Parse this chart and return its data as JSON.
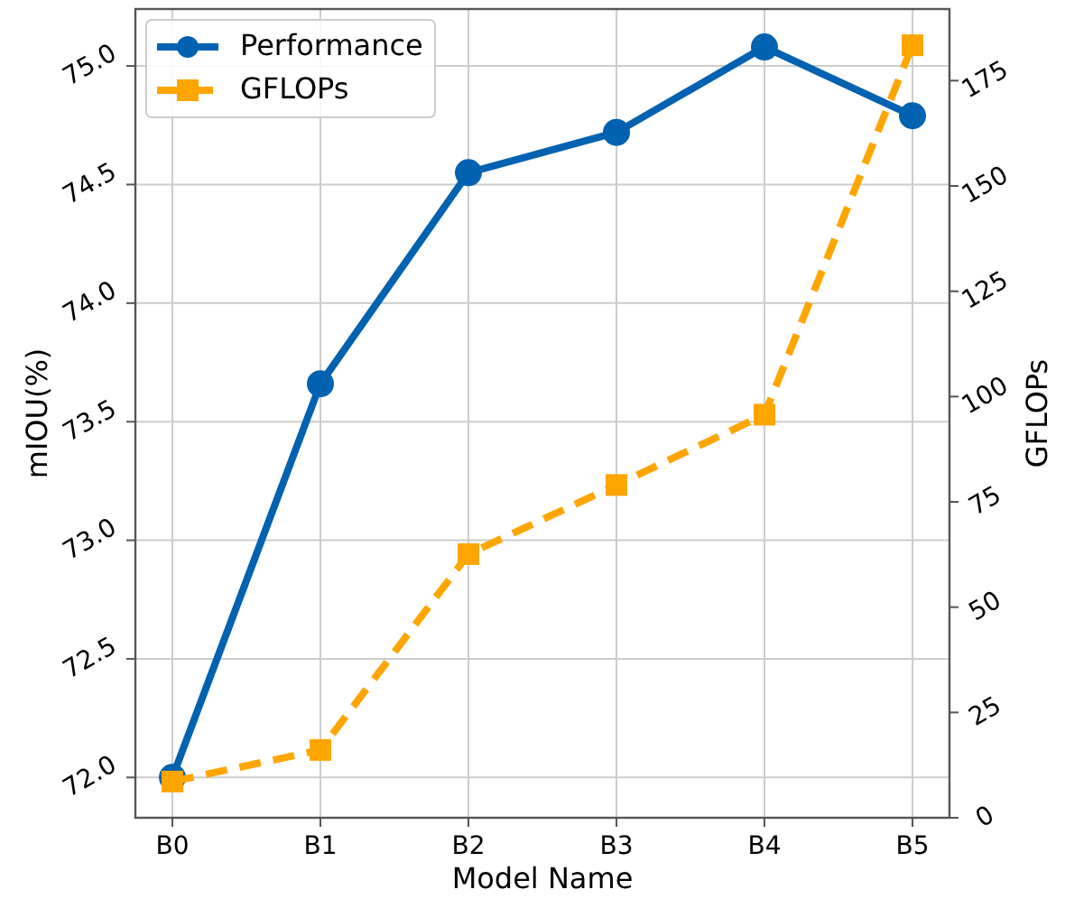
{
  "chart_data": {
    "type": "line",
    "xlabel": "Model Name",
    "ylabel": "mIOU(%)",
    "y2label": "GFLOPs",
    "categories": [
      "B0",
      "B1",
      "B2",
      "B3",
      "B4",
      "B5"
    ],
    "series": [
      {
        "name": "Performance",
        "color": "#0062b0",
        "values": [
          72.0,
          73.66,
          74.55,
          74.72,
          75.08,
          74.79
        ],
        "marker": "circle",
        "line_style": "solid"
      },
      {
        "name": "GFLOPs",
        "color": "#ffa500",
        "values": [
          8.6,
          16.1,
          62.6,
          79,
          95.7,
          183.4
        ],
        "axis": "y2",
        "marker": "square",
        "line_style": "dashed"
      }
    ],
    "ylim": [
      71.83,
      75.24
    ],
    "yticks": [
      {
        "value": 72,
        "label": "72.0"
      },
      {
        "value": 72.5,
        "label": "72.5"
      },
      {
        "value": 73,
        "label": "73.0"
      },
      {
        "value": 73.5,
        "label": "73.5"
      },
      {
        "value": 74,
        "label": "74.0"
      },
      {
        "value": 74.5,
        "label": "74.5"
      },
      {
        "value": 75,
        "label": "75.0"
      }
    ],
    "y2lim": [
      0,
      192
    ],
    "y2ticks": [
      0,
      25,
      50,
      75,
      100,
      125,
      150,
      175
    ],
    "grid": true,
    "legend": "top left"
  }
}
